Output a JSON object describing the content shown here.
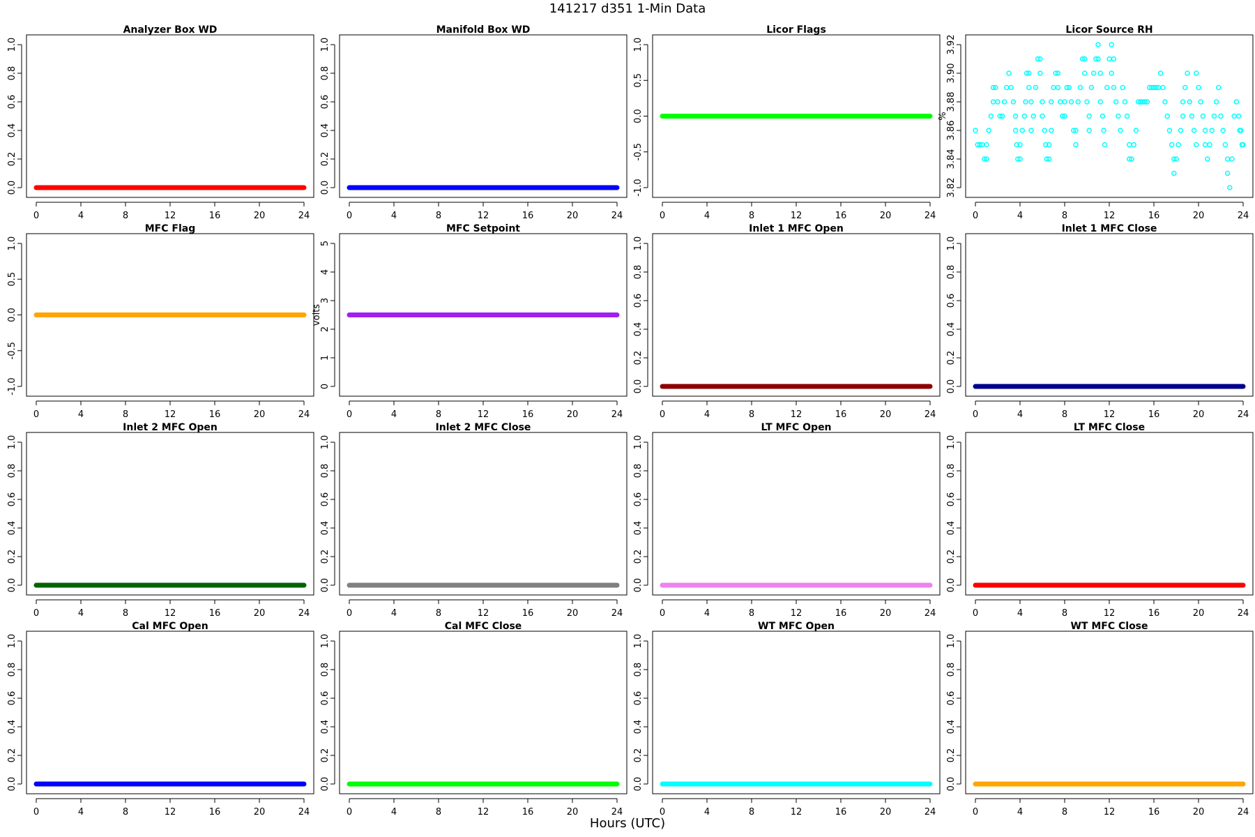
{
  "title": "141217   d351   1-Min Data",
  "xlabel_common": "Hours (UTC)",
  "chart_data": [
    {
      "type": "scatter",
      "title": "Analyzer Box WD",
      "ylabel": "",
      "color": "#ff0000",
      "x_ticks": [
        0,
        4,
        8,
        12,
        16,
        20,
        24
      ],
      "ylim": [
        0,
        1
      ],
      "y_ticks": [
        0.0,
        0.2,
        0.4,
        0.6,
        0.8,
        1.0
      ],
      "y_tick_labels": [
        "0.0",
        "0.2",
        "0.4",
        "0.6",
        "0.8",
        "1.0"
      ],
      "constant_value": 0.0
    },
    {
      "type": "scatter",
      "title": "Manifold Box WD",
      "ylabel": "",
      "color": "#0000ff",
      "x_ticks": [
        0,
        4,
        8,
        12,
        16,
        20,
        24
      ],
      "ylim": [
        0,
        1
      ],
      "y_ticks": [
        0.0,
        0.2,
        0.4,
        0.6,
        0.8,
        1.0
      ],
      "y_tick_labels": [
        "0.0",
        "0.2",
        "0.4",
        "0.6",
        "0.8",
        "1.0"
      ],
      "constant_value": 0.0
    },
    {
      "type": "scatter",
      "title": "Licor Flags",
      "ylabel": "",
      "color": "#00ff00",
      "x_ticks": [
        0,
        4,
        8,
        12,
        16,
        20,
        24
      ],
      "ylim": [
        -1,
        1
      ],
      "y_ticks": [
        -1.0,
        -0.5,
        0.0,
        0.5,
        1.0
      ],
      "y_tick_labels": [
        "-1.0",
        "-0.5",
        "0.0",
        "0.5",
        "1.0"
      ],
      "constant_value": 0.0
    },
    {
      "type": "scatter",
      "title": "Licor Source RH",
      "ylabel": "%",
      "color": "#00ffff",
      "x_ticks": [
        0,
        4,
        8,
        12,
        16,
        20,
        24
      ],
      "ylim": [
        3.82,
        3.92
      ],
      "y_ticks": [
        3.82,
        3.84,
        3.86,
        3.88,
        3.9,
        3.92
      ],
      "y_tick_labels": [
        "3.82",
        "3.84",
        "3.86",
        "3.88",
        "3.90",
        "3.92"
      ],
      "open_circles": true
    },
    {
      "type": "scatter",
      "title": "MFC Flag",
      "ylabel": "",
      "color": "#ffa500",
      "x_ticks": [
        0,
        4,
        8,
        12,
        16,
        20,
        24
      ],
      "ylim": [
        -1,
        1
      ],
      "y_ticks": [
        -1.0,
        -0.5,
        0.0,
        0.5,
        1.0
      ],
      "y_tick_labels": [
        "-1.0",
        "-0.5",
        "0.0",
        "0.5",
        "1.0"
      ],
      "constant_value": 0.0
    },
    {
      "type": "scatter",
      "title": "MFC Setpoint",
      "ylabel": "volts",
      "color": "#a020f0",
      "x_ticks": [
        0,
        4,
        8,
        12,
        16,
        20,
        24
      ],
      "ylim": [
        0,
        5
      ],
      "y_ticks": [
        0,
        1,
        2,
        3,
        4,
        5
      ],
      "y_tick_labels": [
        "0",
        "1",
        "2",
        "3",
        "4",
        "5"
      ],
      "constant_value": 2.5
    },
    {
      "type": "scatter",
      "title": "Inlet 1 MFC Open",
      "ylabel": "",
      "color": "#8b0000",
      "x_ticks": [
        0,
        4,
        8,
        12,
        16,
        20,
        24
      ],
      "ylim": [
        0,
        1
      ],
      "y_ticks": [
        0.0,
        0.2,
        0.4,
        0.6,
        0.8,
        1.0
      ],
      "y_tick_labels": [
        "0.0",
        "0.2",
        "0.4",
        "0.6",
        "0.8",
        "1.0"
      ],
      "constant_value": 0.0
    },
    {
      "type": "scatter",
      "title": "Inlet 1 MFC Close",
      "ylabel": "",
      "color": "#00008b",
      "x_ticks": [
        0,
        4,
        8,
        12,
        16,
        20,
        24
      ],
      "ylim": [
        0,
        1
      ],
      "y_ticks": [
        0.0,
        0.2,
        0.4,
        0.6,
        0.8,
        1.0
      ],
      "y_tick_labels": [
        "0.0",
        "0.2",
        "0.4",
        "0.6",
        "0.8",
        "1.0"
      ],
      "constant_value": 0.0
    },
    {
      "type": "scatter",
      "title": "Inlet 2 MFC Open",
      "ylabel": "",
      "color": "#006400",
      "x_ticks": [
        0,
        4,
        8,
        12,
        16,
        20,
        24
      ],
      "ylim": [
        0,
        1
      ],
      "y_ticks": [
        0.0,
        0.2,
        0.4,
        0.6,
        0.8,
        1.0
      ],
      "y_tick_labels": [
        "0.0",
        "0.2",
        "0.4",
        "0.6",
        "0.8",
        "1.0"
      ],
      "constant_value": 0.0
    },
    {
      "type": "scatter",
      "title": "Inlet 2 MFC Close",
      "ylabel": "",
      "color": "#808080",
      "x_ticks": [
        0,
        4,
        8,
        12,
        16,
        20,
        24
      ],
      "ylim": [
        0,
        1
      ],
      "y_ticks": [
        0.0,
        0.2,
        0.4,
        0.6,
        0.8,
        1.0
      ],
      "y_tick_labels": [
        "0.0",
        "0.2",
        "0.4",
        "0.6",
        "0.8",
        "1.0"
      ],
      "constant_value": 0.0
    },
    {
      "type": "scatter",
      "title": "LT MFC Open",
      "ylabel": "",
      "color": "#ee82ee",
      "x_ticks": [
        0,
        4,
        8,
        12,
        16,
        20,
        24
      ],
      "ylim": [
        0,
        1
      ],
      "y_ticks": [
        0.0,
        0.2,
        0.4,
        0.6,
        0.8,
        1.0
      ],
      "y_tick_labels": [
        "0.0",
        "0.2",
        "0.4",
        "0.6",
        "0.8",
        "1.0"
      ],
      "constant_value": 0.0
    },
    {
      "type": "scatter",
      "title": "LT MFC Close",
      "ylabel": "",
      "color": "#ff0000",
      "x_ticks": [
        0,
        4,
        8,
        12,
        16,
        20,
        24
      ],
      "ylim": [
        0,
        1
      ],
      "y_ticks": [
        0.0,
        0.2,
        0.4,
        0.6,
        0.8,
        1.0
      ],
      "y_tick_labels": [
        "0.0",
        "0.2",
        "0.4",
        "0.6",
        "0.8",
        "1.0"
      ],
      "constant_value": 0.0
    },
    {
      "type": "scatter",
      "title": "Cal MFC Open",
      "ylabel": "",
      "color": "#0000ff",
      "x_ticks": [
        0,
        4,
        8,
        12,
        16,
        20,
        24
      ],
      "ylim": [
        0,
        1
      ],
      "y_ticks": [
        0.0,
        0.2,
        0.4,
        0.6,
        0.8,
        1.0
      ],
      "y_tick_labels": [
        "0.0",
        "0.2",
        "0.4",
        "0.6",
        "0.8",
        "1.0"
      ],
      "constant_value": 0.0
    },
    {
      "type": "scatter",
      "title": "Cal MFC Close",
      "ylabel": "",
      "color": "#00ff00",
      "x_ticks": [
        0,
        4,
        8,
        12,
        16,
        20,
        24
      ],
      "ylim": [
        0,
        1
      ],
      "y_ticks": [
        0.0,
        0.2,
        0.4,
        0.6,
        0.8,
        1.0
      ],
      "y_tick_labels": [
        "0.0",
        "0.2",
        "0.4",
        "0.6",
        "0.8",
        "1.0"
      ],
      "constant_value": 0.0
    },
    {
      "type": "scatter",
      "title": "WT MFC Open",
      "ylabel": "",
      "color": "#00ffff",
      "x_ticks": [
        0,
        4,
        8,
        12,
        16,
        20,
        24
      ],
      "ylim": [
        0,
        1
      ],
      "y_ticks": [
        0.0,
        0.2,
        0.4,
        0.6,
        0.8,
        1.0
      ],
      "y_tick_labels": [
        "0.0",
        "0.2",
        "0.4",
        "0.6",
        "0.8",
        "1.0"
      ],
      "constant_value": 0.0
    },
    {
      "type": "scatter",
      "title": "WT MFC Close",
      "ylabel": "",
      "color": "#ffa500",
      "x_ticks": [
        0,
        4,
        8,
        12,
        16,
        20,
        24
      ],
      "ylim": [
        0,
        1
      ],
      "y_ticks": [
        0.0,
        0.2,
        0.4,
        0.6,
        0.8,
        1.0
      ],
      "y_tick_labels": [
        "0.0",
        "0.2",
        "0.4",
        "0.6",
        "0.8",
        "1.0"
      ],
      "constant_value": 0.0
    }
  ],
  "rh_points": [
    [
      0.0,
      3.86
    ],
    [
      0.2,
      3.85
    ],
    [
      0.4,
      3.85
    ],
    [
      0.6,
      3.85
    ],
    [
      0.8,
      3.84
    ],
    [
      1.0,
      3.84
    ],
    [
      1.0,
      3.85
    ],
    [
      1.2,
      3.86
    ],
    [
      1.4,
      3.87
    ],
    [
      1.6,
      3.89
    ],
    [
      1.8,
      3.89
    ],
    [
      1.6,
      3.88
    ],
    [
      2.0,
      3.88
    ],
    [
      2.2,
      3.87
    ],
    [
      2.4,
      3.87
    ],
    [
      2.6,
      3.88
    ],
    [
      2.8,
      3.89
    ],
    [
      3.0,
      3.9
    ],
    [
      3.2,
      3.89
    ],
    [
      3.4,
      3.88
    ],
    [
      3.6,
      3.87
    ],
    [
      3.6,
      3.86
    ],
    [
      3.7,
      3.85
    ],
    [
      3.8,
      3.84
    ],
    [
      4.0,
      3.84
    ],
    [
      4.0,
      3.85
    ],
    [
      4.2,
      3.86
    ],
    [
      4.4,
      3.87
    ],
    [
      4.5,
      3.88
    ],
    [
      4.6,
      3.9
    ],
    [
      4.8,
      3.9
    ],
    [
      4.8,
      3.89
    ],
    [
      5.0,
      3.88
    ],
    [
      5.0,
      3.86
    ],
    [
      5.2,
      3.87
    ],
    [
      5.4,
      3.89
    ],
    [
      5.6,
      3.91
    ],
    [
      5.8,
      3.91
    ],
    [
      5.8,
      3.9
    ],
    [
      6.0,
      3.88
    ],
    [
      6.0,
      3.87
    ],
    [
      6.2,
      3.86
    ],
    [
      6.3,
      3.85
    ],
    [
      6.4,
      3.84
    ],
    [
      6.6,
      3.84
    ],
    [
      6.6,
      3.85
    ],
    [
      6.8,
      3.86
    ],
    [
      6.8,
      3.88
    ],
    [
      7.0,
      3.89
    ],
    [
      7.2,
      3.9
    ],
    [
      7.4,
      3.9
    ],
    [
      7.4,
      3.89
    ],
    [
      7.6,
      3.88
    ],
    [
      7.8,
      3.87
    ],
    [
      8.0,
      3.87
    ],
    [
      8.0,
      3.88
    ],
    [
      8.2,
      3.89
    ],
    [
      8.4,
      3.89
    ],
    [
      8.6,
      3.88
    ],
    [
      8.8,
      3.86
    ],
    [
      9.0,
      3.85
    ],
    [
      9.0,
      3.86
    ],
    [
      9.2,
      3.88
    ],
    [
      9.4,
      3.89
    ],
    [
      9.6,
      3.91
    ],
    [
      9.8,
      3.91
    ],
    [
      9.8,
      3.9
    ],
    [
      10.0,
      3.88
    ],
    [
      10.2,
      3.86
    ],
    [
      10.2,
      3.87
    ],
    [
      10.4,
      3.89
    ],
    [
      10.6,
      3.9
    ],
    [
      10.8,
      3.91
    ],
    [
      11.0,
      3.92
    ],
    [
      11.0,
      3.91
    ],
    [
      11.2,
      3.9
    ],
    [
      11.2,
      3.88
    ],
    [
      11.4,
      3.87
    ],
    [
      11.5,
      3.86
    ],
    [
      11.6,
      3.85
    ],
    [
      11.8,
      3.89
    ],
    [
      12.0,
      3.91
    ],
    [
      12.2,
      3.92
    ],
    [
      12.2,
      3.9
    ],
    [
      12.4,
      3.91
    ],
    [
      12.4,
      3.89
    ],
    [
      12.6,
      3.88
    ],
    [
      12.8,
      3.87
    ],
    [
      13.0,
      3.86
    ],
    [
      13.2,
      3.89
    ],
    [
      13.4,
      3.88
    ],
    [
      13.6,
      3.87
    ],
    [
      13.8,
      3.85
    ],
    [
      13.8,
      3.84
    ],
    [
      14.0,
      3.84
    ],
    [
      14.2,
      3.85
    ],
    [
      14.4,
      3.86
    ],
    [
      14.6,
      3.88
    ],
    [
      14.8,
      3.88
    ],
    [
      15.0,
      3.88
    ],
    [
      15.2,
      3.88
    ],
    [
      15.4,
      3.88
    ],
    [
      15.6,
      3.89
    ],
    [
      15.8,
      3.89
    ],
    [
      16.0,
      3.89
    ],
    [
      16.2,
      3.89
    ],
    [
      16.4,
      3.89
    ],
    [
      16.6,
      3.9
    ],
    [
      16.8,
      3.89
    ],
    [
      17.0,
      3.88
    ],
    [
      17.2,
      3.87
    ],
    [
      17.4,
      3.86
    ],
    [
      17.6,
      3.85
    ],
    [
      17.8,
      3.84
    ],
    [
      17.8,
      3.83
    ],
    [
      18.0,
      3.84
    ],
    [
      18.2,
      3.85
    ],
    [
      18.4,
      3.86
    ],
    [
      18.6,
      3.87
    ],
    [
      18.6,
      3.88
    ],
    [
      18.8,
      3.89
    ],
    [
      19.0,
      3.9
    ],
    [
      19.2,
      3.88
    ],
    [
      19.4,
      3.87
    ],
    [
      19.6,
      3.86
    ],
    [
      19.8,
      3.85
    ],
    [
      19.8,
      3.9
    ],
    [
      20.0,
      3.89
    ],
    [
      20.2,
      3.88
    ],
    [
      20.4,
      3.87
    ],
    [
      20.6,
      3.86
    ],
    [
      20.6,
      3.85
    ],
    [
      20.8,
      3.84
    ],
    [
      21.0,
      3.85
    ],
    [
      21.2,
      3.86
    ],
    [
      21.4,
      3.87
    ],
    [
      21.6,
      3.88
    ],
    [
      21.8,
      3.89
    ],
    [
      22.0,
      3.87
    ],
    [
      22.2,
      3.86
    ],
    [
      22.4,
      3.85
    ],
    [
      22.6,
      3.84
    ],
    [
      22.6,
      3.83
    ],
    [
      22.8,
      3.82
    ],
    [
      23.0,
      3.84
    ],
    [
      23.2,
      3.87
    ],
    [
      23.4,
      3.88
    ],
    [
      23.6,
      3.87
    ],
    [
      23.7,
      3.86
    ],
    [
      23.8,
      3.86
    ],
    [
      23.9,
      3.85
    ],
    [
      24.0,
      3.85
    ]
  ]
}
